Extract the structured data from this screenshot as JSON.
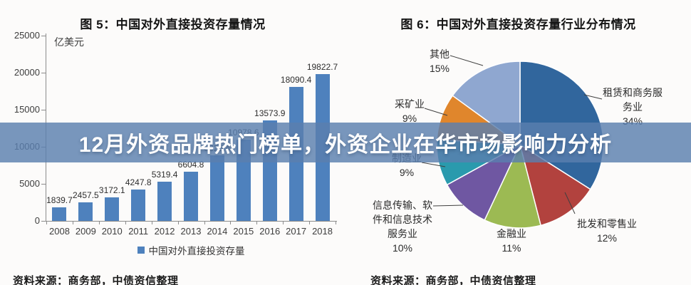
{
  "banner": {
    "text": "12月外资品牌热门榜单，外资企业在华市场影响力分析",
    "bg_color": "#5a7fae",
    "text_color": "#ffffff"
  },
  "figure5": {
    "title": "图 5：中国对外直接投资存量情况",
    "unit": "亿美元",
    "legend_label": "中国对外直接投资存量",
    "source": "资料来源：商务部，中债资信整理"
  },
  "figure6": {
    "title": "图 6：中国对外直接投资存量行业分布情况",
    "source": "资料来源：商务部，中债资信整理"
  },
  "chart_data": [
    {
      "type": "bar",
      "title": "图 5：中国对外直接投资存量情况",
      "ylabel": "亿美元",
      "categories": [
        "2008",
        "2009",
        "2010",
        "2011",
        "2012",
        "2013",
        "2014",
        "2015",
        "2016",
        "2017",
        "2018"
      ],
      "values": [
        1839.7,
        2457.5,
        3172.1,
        4247.8,
        5319.4,
        6604.8,
        8826.4,
        10978.6,
        13573.9,
        18090.4,
        19822.7
      ],
      "yticks": [
        0,
        5000,
        10000,
        15000,
        20000,
        25000
      ],
      "ylim": [
        0,
        25000
      ],
      "bar_color": "#4e81bd",
      "grid": false,
      "legend": [
        "中国对外直接投资存量"
      ],
      "legend_position": "bottom"
    },
    {
      "type": "pie",
      "title": "图 6：中国对外直接投资存量行业分布情况",
      "start_angle_deg": 0,
      "direction": "clockwise",
      "slices": [
        {
          "label": "租赁和商务服务业",
          "label_lines": [
            "租赁和商务服",
            "务业"
          ],
          "value": 34,
          "pct_text": "34%",
          "color": "#31669d"
        },
        {
          "label": "批发和零售业",
          "label_lines": [
            "批发和零售业"
          ],
          "value": 12,
          "pct_text": "12%",
          "color": "#b2423e"
        },
        {
          "label": "金融业",
          "label_lines": [
            "金融业"
          ],
          "value": 11,
          "pct_text": "11%",
          "color": "#9cba53"
        },
        {
          "label": "信息传输、软件和信息技术服务业",
          "label_lines": [
            "信息传输、软",
            "件和信息技术",
            "服务业"
          ],
          "value": 10,
          "pct_text": "10%",
          "color": "#6f57a2"
        },
        {
          "label": "制造业",
          "label_lines": [
            "制造业"
          ],
          "value": 9,
          "pct_text": "9%",
          "color": "#2a9aad"
        },
        {
          "label": "采矿业",
          "label_lines": [
            "采矿业"
          ],
          "value": 9,
          "pct_text": "9%",
          "color": "#e0862c"
        },
        {
          "label": "其他",
          "label_lines": [
            "其他"
          ],
          "value": 15,
          "pct_text": "15%",
          "color": "#8fa7d0"
        }
      ]
    }
  ]
}
